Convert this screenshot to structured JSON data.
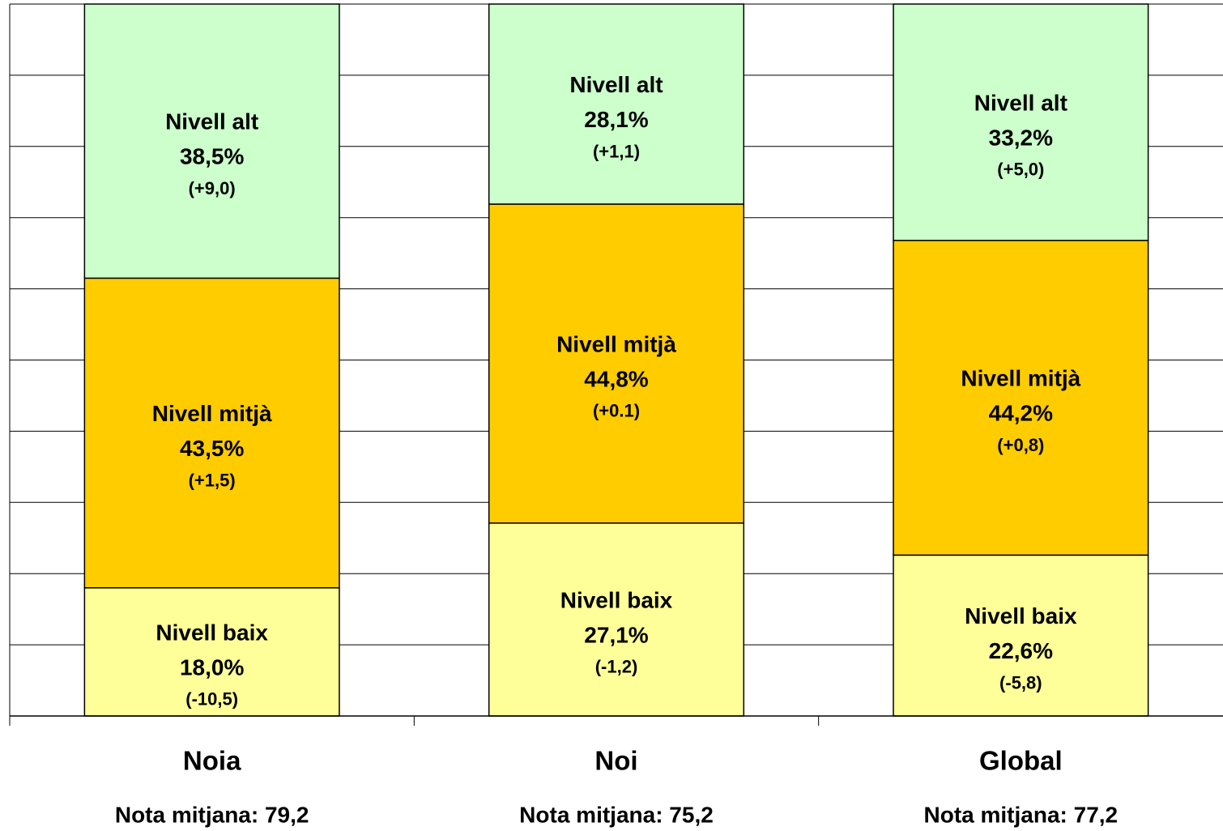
{
  "chart_data": {
    "type": "stacked_bar",
    "categories": [
      "Noia",
      "Noi",
      "Global"
    ],
    "notes": [
      "Nota mitjana: 79,2",
      "Nota mitjana: 75,2",
      "Nota mitjana: 77,2"
    ],
    "series": [
      {
        "name": "Nivell baix",
        "color": "#ffff99",
        "values": [
          18.0,
          27.1,
          22.6
        ],
        "value_labels": [
          "18,0%",
          "27,1%",
          "22,6%"
        ],
        "changes": [
          "(-10,5)",
          "(-1,2)",
          "(-5,8)"
        ]
      },
      {
        "name": "Nivell mitjà",
        "color": "#ffcc00",
        "values": [
          43.5,
          44.8,
          44.2
        ],
        "value_labels": [
          "43,5%",
          "44,8%",
          "44,2%"
        ],
        "changes": [
          "(+1,5)",
          "(+0.1)",
          "(+0,8)"
        ]
      },
      {
        "name": "Nivell alt",
        "color": "#ccffcc",
        "values": [
          38.5,
          28.1,
          33.2
        ],
        "value_labels": [
          "38,5%",
          "28,1%",
          "33,2%"
        ],
        "changes": [
          "(+9,0)",
          "(+1,1)",
          "(+5,0)"
        ]
      }
    ],
    "ylim": [
      0,
      100
    ],
    "yticks": [
      0,
      10,
      20,
      30,
      40,
      50,
      60,
      70,
      80,
      90,
      100
    ],
    "grid": true
  }
}
